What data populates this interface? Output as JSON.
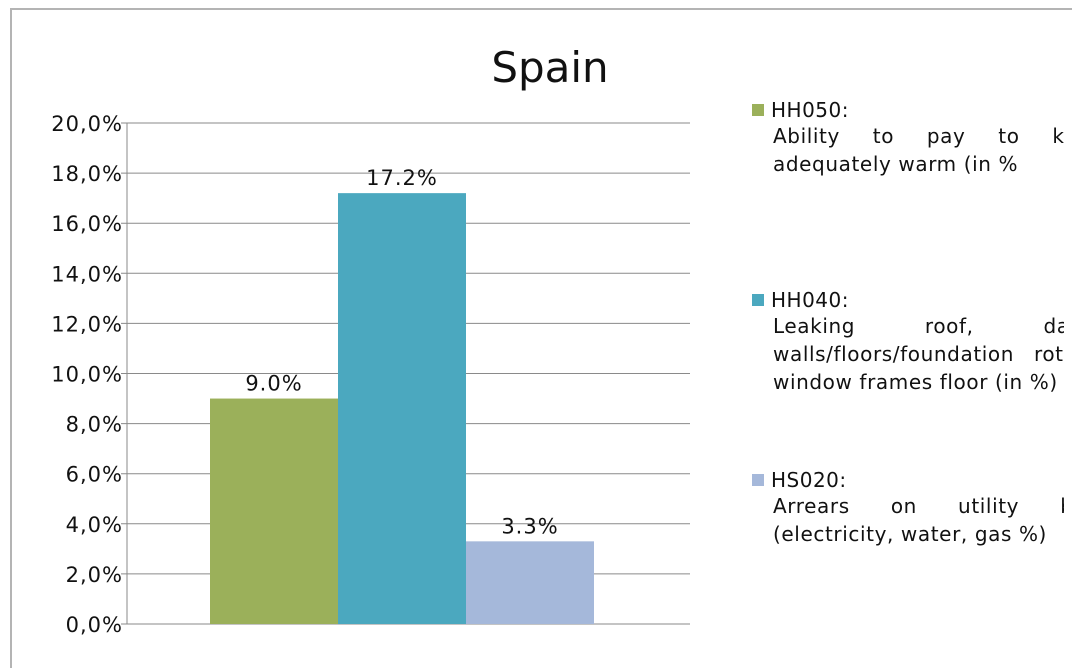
{
  "chart_data": {
    "type": "bar",
    "title": "Spain",
    "xlabel": "",
    "ylabel": "",
    "ylim": [
      0,
      20
    ],
    "y_ticks": [
      "0,0%",
      "2,0%",
      "4,0%",
      "6,0%",
      "8,0%",
      "10,0%",
      "12,0%",
      "14,0%",
      "16,0%",
      "18,0%",
      "20,0%"
    ],
    "grid": true,
    "legend_position": "right",
    "series": [
      {
        "name": "HH050:",
        "description": "Ability to pay to keep adequately warm (in %",
        "value": 9.0,
        "data_label": "9.0%",
        "color": "#9bb05a"
      },
      {
        "name": "HH040:",
        "description": "Leaking roof, damp walls/floors/foundation rot in window frames floor (in %)",
        "value": 17.2,
        "data_label": "17.2%",
        "color": "#4ba8bf"
      },
      {
        "name": "HS020:",
        "description": "Arrears on utility bills (electricity, water, gas %)",
        "value": 3.3,
        "data_label": "3.3%",
        "color": "#a5b8da"
      }
    ]
  }
}
